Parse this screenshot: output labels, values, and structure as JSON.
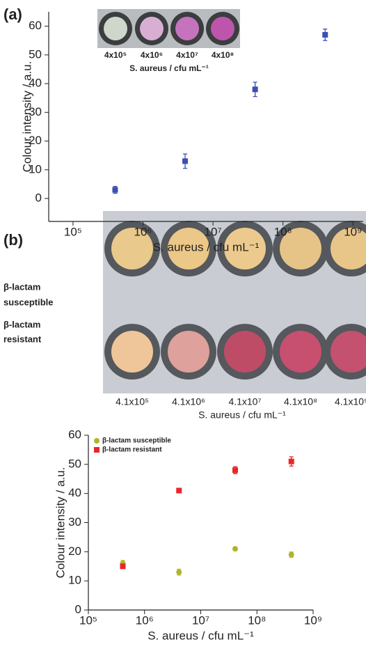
{
  "chart_data": [
    {
      "type": "scatter",
      "panel_label": "(a)",
      "y_label": "Colour intensity / a.u.",
      "x_label": "S. aureus / cfu mL⁻¹",
      "log_x": true,
      "xlim": [
        45000,
        1400000000
      ],
      "ylim": [
        -8,
        65
      ],
      "xticks": [
        {
          "value": 100000,
          "label": "10⁵"
        },
        {
          "value": 1000000,
          "label": "10⁶"
        },
        {
          "value": 10000000,
          "label": "10⁷"
        },
        {
          "value": 100000000,
          "label": "10⁸"
        },
        {
          "value": 1000000000,
          "label": "10⁹"
        }
      ],
      "yticks": [
        0,
        10,
        20,
        30,
        40,
        50,
        60
      ],
      "x": [
        400000,
        4000000,
        40000000,
        400000000
      ],
      "series": [
        {
          "name": null,
          "color": "#3b4fb3",
          "marker": "square",
          "values": [
            3,
            13,
            38,
            57
          ],
          "errors": [
            1.2,
            2.5,
            2.5,
            2
          ]
        }
      ],
      "inset": {
        "labels": [
          "4x10⁵",
          "4x10⁶",
          "4x10⁷",
          "4x10⁸"
        ],
        "caption": "S. aureus / cfu mL⁻¹"
      }
    },
    {
      "type": "scatter",
      "panel_label": "(b)",
      "y_label": "Colour intensity / a.u.",
      "x_label": "S. aureus / cfu mL⁻¹",
      "log_x": true,
      "xlim": [
        100000,
        1000000000
      ],
      "ylim": [
        0,
        60
      ],
      "xticks": [
        {
          "value": 100000,
          "label": "10⁵"
        },
        {
          "value": 1000000,
          "label": "10⁶"
        },
        {
          "value": 10000000,
          "label": "10⁷"
        },
        {
          "value": 100000000,
          "label": "10⁸"
        },
        {
          "value": 1000000000,
          "label": "10⁹"
        }
      ],
      "yticks": [
        0,
        10,
        20,
        30,
        40,
        50,
        60
      ],
      "x": [
        410000,
        4100000,
        41000000,
        410000000
      ],
      "legend": "upper left",
      "series": [
        {
          "name": "β-lactam susceptible",
          "color": "#b3b32a",
          "marker": "circle",
          "values": [
            16,
            13,
            21,
            19
          ],
          "errors": [
            1,
            1,
            0.6,
            0.9
          ]
        },
        {
          "name": "β-lactam resistant",
          "color": "#e8262a",
          "marker": "square",
          "values": [
            15,
            41,
            48,
            51
          ],
          "errors": [
            0.7,
            0.8,
            1.2,
            1.6
          ]
        }
      ],
      "photo": {
        "row_labels": [
          [
            "β-lactam",
            "susceptible"
          ],
          [
            "β-lactam",
            "resistant"
          ]
        ],
        "column_labels": [
          "4.1x10⁵",
          "4.1x10⁶",
          "4.1x10⁷",
          "4.1x10⁸",
          "4.1x10⁹"
        ],
        "caption": "S. aureus / cfu mL⁻¹"
      }
    }
  ]
}
